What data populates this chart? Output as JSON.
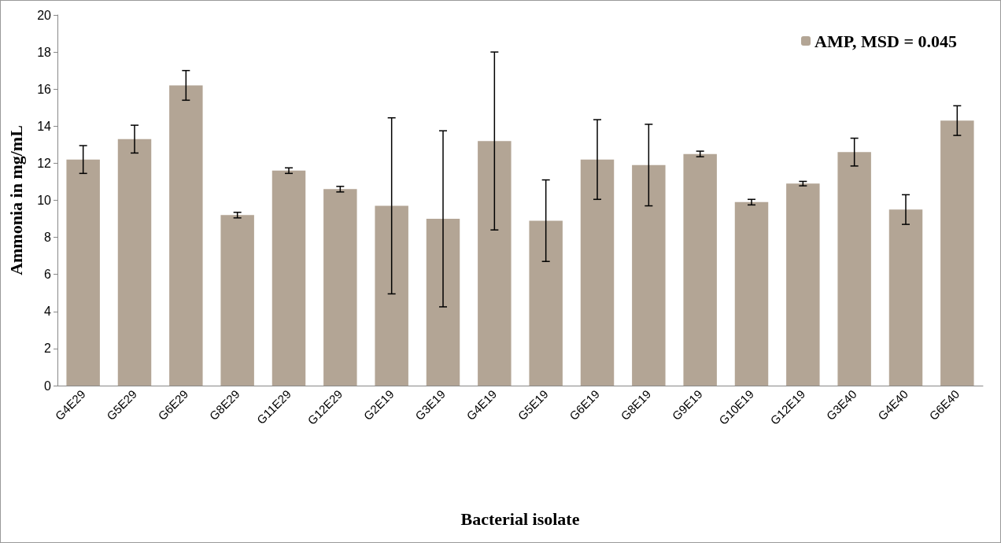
{
  "chart_data": {
    "type": "bar",
    "xlabel": "Bacterial isolate",
    "ylabel": "Ammonia in mg/mL",
    "categories": [
      "G4E29",
      "G5E29",
      "G6E29",
      "G8E29",
      "G11E29",
      "G12E29",
      "G2E19",
      "G3E19",
      "G4E19",
      "G5E19",
      "G6E19",
      "G8E19",
      "G9E19",
      "G10E19",
      "G12E19",
      "G3E40",
      "G4E40",
      "G6E40"
    ],
    "series": [
      {
        "name": "AMP, MSD = 0.045",
        "color": "#b3a595",
        "values": [
          12.2,
          13.3,
          16.2,
          9.2,
          11.6,
          10.6,
          9.7,
          9.0,
          13.2,
          8.9,
          12.2,
          11.9,
          12.5,
          9.9,
          10.9,
          12.6,
          9.5,
          14.3
        ],
        "errors": [
          0.75,
          0.75,
          0.8,
          0.15,
          0.15,
          0.15,
          4.75,
          4.75,
          4.8,
          2.2,
          2.15,
          2.2,
          0.15,
          0.15,
          0.12,
          0.75,
          0.8,
          0.8
        ]
      }
    ],
    "ylim": [
      0,
      20
    ],
    "yticks": [
      0,
      2,
      4,
      6,
      8,
      10,
      12,
      14,
      16,
      18,
      20
    ],
    "grid": false,
    "legend": "top right"
  }
}
